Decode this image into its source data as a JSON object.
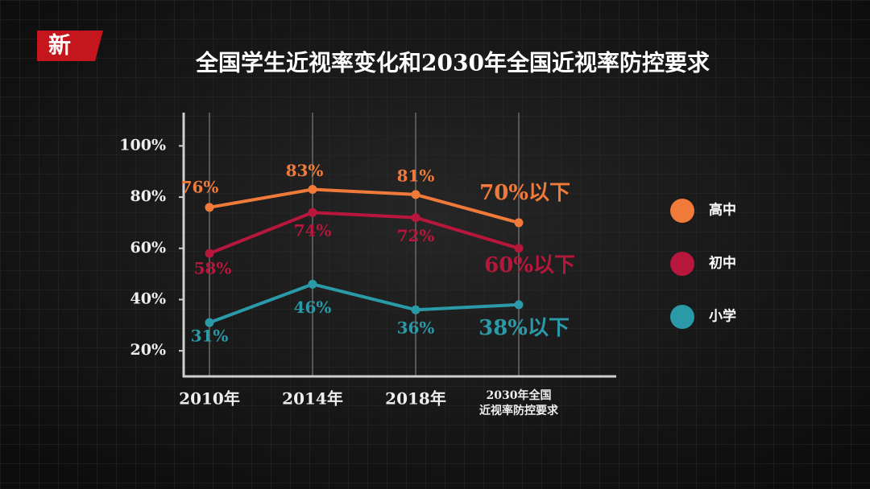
{
  "logo": "新",
  "chart_data": {
    "type": "line",
    "title": "全国学生近视率变化和2030年全国近视率防控要求",
    "categories": [
      "2010年",
      "2014年",
      "2018年",
      "2030年全国近视率防控要求"
    ],
    "series": [
      {
        "name": "高中",
        "color": "#f07a3a",
        "values": [
          76,
          83,
          81,
          70
        ],
        "value_labels": [
          "76%",
          "83%",
          "81%",
          "70%以下"
        ]
      },
      {
        "name": "初中",
        "color": "#b8173c",
        "values": [
          58,
          74,
          72,
          60
        ],
        "value_labels": [
          "58%",
          "74%",
          "72%",
          "60%以下"
        ]
      },
      {
        "name": "小学",
        "color": "#2a9aa8",
        "values": [
          31,
          46,
          36,
          38
        ],
        "value_labels": [
          "31%",
          "46%",
          "36%",
          "38%以下"
        ]
      }
    ],
    "ylim": [
      10,
      113
    ],
    "yticks": [
      {
        "value": 20,
        "label": "20%"
      },
      {
        "value": 40,
        "label": "40%"
      },
      {
        "value": 60,
        "label": "60%"
      },
      {
        "value": 80,
        "label": "80%"
      },
      {
        "value": 100,
        "label": "100%"
      }
    ],
    "legend": "right"
  }
}
